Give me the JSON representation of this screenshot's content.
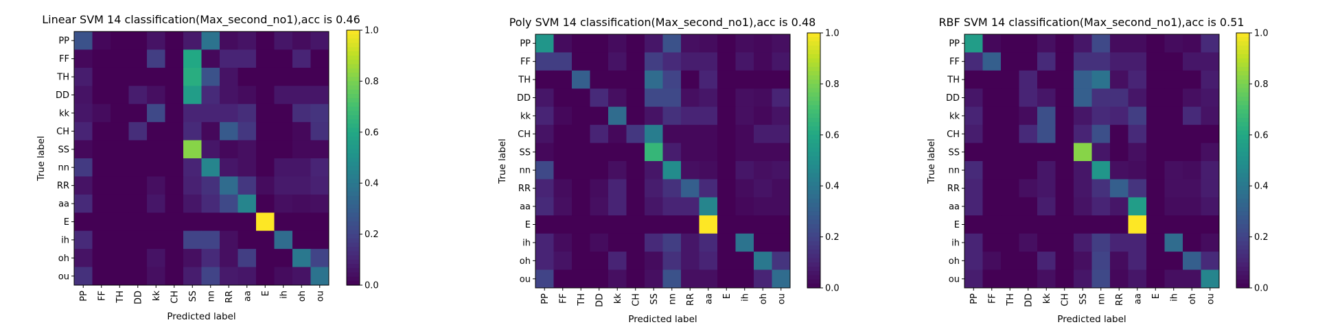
{
  "figure": {},
  "chart_data": [
    {
      "type": "heatmap",
      "title": "Linear SVM 14 classification(Max_second_no1),acc is 0.46",
      "xlabel": "Predicted label",
      "ylabel": "True label",
      "x_categories": [
        "PP",
        "FF",
        "TH",
        "DD",
        "kk",
        "CH",
        "SS",
        "nn",
        "RR",
        "aa",
        "E",
        "ih",
        "oh",
        "ou"
      ],
      "y_categories": [
        "PP",
        "FF",
        "TH",
        "DD",
        "kk",
        "CH",
        "SS",
        "nn",
        "RR",
        "aa",
        "E",
        "ih",
        "oh",
        "ou"
      ],
      "colorbar": {
        "range": [
          0,
          1
        ],
        "ticks": [
          "0.0",
          "0.2",
          "0.4",
          "0.6",
          "0.8",
          "1.0"
        ],
        "colormap": "viridis"
      },
      "values": [
        [
          0.25,
          0.02,
          0.0,
          0.0,
          0.05,
          0.0,
          0.07,
          0.38,
          0.03,
          0.05,
          0.0,
          0.06,
          0.03,
          0.06
        ],
        [
          0.02,
          0.0,
          0.0,
          0.0,
          0.18,
          0.0,
          0.6,
          0.02,
          0.1,
          0.1,
          0.0,
          0.0,
          0.1,
          0.0
        ],
        [
          0.08,
          0.0,
          0.0,
          0.0,
          0.0,
          0.0,
          0.62,
          0.25,
          0.05,
          0.0,
          0.0,
          0.0,
          0.0,
          0.0
        ],
        [
          0.05,
          0.0,
          0.0,
          0.08,
          0.04,
          0.0,
          0.55,
          0.12,
          0.05,
          0.03,
          0.0,
          0.06,
          0.06,
          0.06
        ],
        [
          0.06,
          0.03,
          0.0,
          0.0,
          0.22,
          0.0,
          0.1,
          0.1,
          0.1,
          0.13,
          0.0,
          0.0,
          0.13,
          0.15
        ],
        [
          0.1,
          0.0,
          0.0,
          0.13,
          0.0,
          0.0,
          0.12,
          0.02,
          0.28,
          0.16,
          0.0,
          0.0,
          0.02,
          0.14
        ],
        [
          0.02,
          0.0,
          0.0,
          0.0,
          0.0,
          0.0,
          0.82,
          0.06,
          0.02,
          0.04,
          0.0,
          0.0,
          0.02,
          0.02
        ],
        [
          0.17,
          0.0,
          0.0,
          0.0,
          0.0,
          0.0,
          0.1,
          0.45,
          0.06,
          0.04,
          0.0,
          0.06,
          0.06,
          0.1
        ],
        [
          0.05,
          0.0,
          0.0,
          0.0,
          0.04,
          0.0,
          0.09,
          0.14,
          0.35,
          0.16,
          0.03,
          0.07,
          0.07,
          0.09
        ],
        [
          0.12,
          0.0,
          0.0,
          0.0,
          0.06,
          0.0,
          0.06,
          0.12,
          0.22,
          0.45,
          0.0,
          0.04,
          0.03,
          0.04
        ],
        [
          0.0,
          0.0,
          0.0,
          0.0,
          0.0,
          0.0,
          0.0,
          0.0,
          0.0,
          0.0,
          1.0,
          0.0,
          0.0,
          0.0
        ],
        [
          0.12,
          0.0,
          0.0,
          0.0,
          0.0,
          0.0,
          0.2,
          0.2,
          0.04,
          0.0,
          0.0,
          0.35,
          0.0,
          0.0
        ],
        [
          0.05,
          0.0,
          0.0,
          0.0,
          0.05,
          0.0,
          0.04,
          0.12,
          0.04,
          0.18,
          0.0,
          0.0,
          0.4,
          0.2
        ],
        [
          0.14,
          0.0,
          0.0,
          0.0,
          0.04,
          0.0,
          0.08,
          0.2,
          0.07,
          0.06,
          0.0,
          0.03,
          0.05,
          0.38
        ]
      ]
    },
    {
      "type": "heatmap",
      "title": "Poly SVM 14 classification(Max_second_no1),acc is 0.48",
      "xlabel": "Predicted label",
      "ylabel": "True label",
      "x_categories": [
        "PP",
        "FF",
        "TH",
        "DD",
        "kk",
        "CH",
        "SS",
        "nn",
        "RR",
        "aa",
        "E",
        "ih",
        "oh",
        "ou"
      ],
      "y_categories": [
        "PP",
        "FF",
        "TH",
        "DD",
        "kk",
        "CH",
        "SS",
        "nn",
        "RR",
        "aa",
        "E",
        "ih",
        "oh",
        "ou"
      ],
      "colorbar": {
        "range": [
          0,
          1
        ],
        "ticks": [
          "0.0",
          "0.2",
          "0.4",
          "0.6",
          "0.8",
          "1.0"
        ],
        "colormap": "viridis"
      },
      "values": [
        [
          0.52,
          0.03,
          0.0,
          0.0,
          0.03,
          0.0,
          0.06,
          0.25,
          0.04,
          0.03,
          0.0,
          0.03,
          0.02,
          0.04
        ],
        [
          0.18,
          0.18,
          0.0,
          0.0,
          0.05,
          0.0,
          0.18,
          0.12,
          0.08,
          0.08,
          0.0,
          0.06,
          0.02,
          0.06
        ],
        [
          0.0,
          0.0,
          0.3,
          0.0,
          0.0,
          0.0,
          0.35,
          0.2,
          0.0,
          0.1,
          0.0,
          0.0,
          0.0,
          0.0
        ],
        [
          0.06,
          0.0,
          0.0,
          0.12,
          0.04,
          0.0,
          0.22,
          0.22,
          0.04,
          0.06,
          0.0,
          0.04,
          0.03,
          0.1
        ],
        [
          0.1,
          0.02,
          0.0,
          0.0,
          0.35,
          0.0,
          0.05,
          0.14,
          0.1,
          0.1,
          0.0,
          0.04,
          0.02,
          0.05
        ],
        [
          0.05,
          0.0,
          0.0,
          0.1,
          0.02,
          0.16,
          0.42,
          0.02,
          0.02,
          0.02,
          0.0,
          0.02,
          0.08,
          0.08
        ],
        [
          0.02,
          0.0,
          0.0,
          0.0,
          0.0,
          0.0,
          0.66,
          0.08,
          0.02,
          0.02,
          0.0,
          0.02,
          0.02,
          0.02
        ],
        [
          0.22,
          0.0,
          0.0,
          0.0,
          0.04,
          0.0,
          0.06,
          0.48,
          0.04,
          0.03,
          0.0,
          0.06,
          0.04,
          0.05
        ],
        [
          0.1,
          0.03,
          0.0,
          0.03,
          0.1,
          0.0,
          0.08,
          0.14,
          0.3,
          0.12,
          0.0,
          0.03,
          0.05,
          0.03
        ],
        [
          0.12,
          0.04,
          0.0,
          0.04,
          0.1,
          0.0,
          0.06,
          0.1,
          0.1,
          0.45,
          0.0,
          0.02,
          0.03,
          0.03
        ],
        [
          0.0,
          0.0,
          0.0,
          0.0,
          0.0,
          0.0,
          0.0,
          0.0,
          0.0,
          1.0,
          0.0,
          0.0,
          0.0,
          0.0
        ],
        [
          0.1,
          0.03,
          0.0,
          0.03,
          0.0,
          0.0,
          0.12,
          0.18,
          0.06,
          0.12,
          0.0,
          0.38,
          0.0,
          0.0
        ],
        [
          0.1,
          0.05,
          0.0,
          0.0,
          0.1,
          0.0,
          0.03,
          0.14,
          0.06,
          0.1,
          0.0,
          0.0,
          0.4,
          0.15
        ],
        [
          0.2,
          0.0,
          0.0,
          0.0,
          0.04,
          0.0,
          0.04,
          0.25,
          0.04,
          0.04,
          0.0,
          0.0,
          0.1,
          0.35
        ]
      ]
    },
    {
      "type": "heatmap",
      "title": "RBF SVM 14 classification(Max_second_no1),acc is 0.51",
      "xlabel": "Predicted label",
      "ylabel": "True label",
      "x_categories": [
        "PP",
        "FF",
        "TH",
        "DD",
        "kk",
        "CH",
        "SS",
        "nn",
        "RR",
        "aa",
        "E",
        "ih",
        "oh",
        "ou"
      ],
      "y_categories": [
        "PP",
        "FF",
        "TH",
        "DD",
        "kk",
        "CH",
        "SS",
        "nn",
        "RR",
        "aa",
        "E",
        "ih",
        "oh",
        "ou"
      ],
      "colorbar": {
        "range": [
          0,
          1
        ],
        "ticks": [
          "0.0",
          "0.2",
          "0.4",
          "0.6",
          "0.8",
          "1.0"
        ],
        "colormap": "viridis"
      },
      "values": [
        [
          0.55,
          0.02,
          0.0,
          0.0,
          0.04,
          0.0,
          0.06,
          0.22,
          0.03,
          0.03,
          0.0,
          0.03,
          0.02,
          0.12
        ],
        [
          0.12,
          0.3,
          0.0,
          0.0,
          0.12,
          0.0,
          0.14,
          0.14,
          0.08,
          0.08,
          0.0,
          0.0,
          0.06,
          0.06
        ],
        [
          0.0,
          0.0,
          0.0,
          0.1,
          0.0,
          0.0,
          0.3,
          0.38,
          0.04,
          0.1,
          0.0,
          0.0,
          0.0,
          0.08
        ],
        [
          0.06,
          0.0,
          0.0,
          0.1,
          0.06,
          0.0,
          0.3,
          0.14,
          0.14,
          0.06,
          0.0,
          0.0,
          0.04,
          0.06
        ],
        [
          0.1,
          0.0,
          0.0,
          0.03,
          0.24,
          0.0,
          0.06,
          0.12,
          0.1,
          0.18,
          0.0,
          0.0,
          0.12,
          0.05
        ],
        [
          0.08,
          0.0,
          0.0,
          0.12,
          0.24,
          0.0,
          0.1,
          0.24,
          0.0,
          0.12,
          0.0,
          0.0,
          0.0,
          0.0
        ],
        [
          0.0,
          0.0,
          0.0,
          0.0,
          0.0,
          0.0,
          0.82,
          0.06,
          0.0,
          0.04,
          0.0,
          0.0,
          0.0,
          0.04
        ],
        [
          0.12,
          0.0,
          0.0,
          0.0,
          0.06,
          0.0,
          0.06,
          0.52,
          0.04,
          0.03,
          0.0,
          0.04,
          0.03,
          0.08
        ],
        [
          0.1,
          0.0,
          0.0,
          0.04,
          0.06,
          0.0,
          0.06,
          0.14,
          0.3,
          0.15,
          0.0,
          0.04,
          0.04,
          0.08
        ],
        [
          0.1,
          0.0,
          0.0,
          0.0,
          0.08,
          0.0,
          0.05,
          0.1,
          0.06,
          0.55,
          0.0,
          0.03,
          0.03,
          0.06
        ],
        [
          0.0,
          0.0,
          0.0,
          0.0,
          0.0,
          0.0,
          0.0,
          0.0,
          0.0,
          1.0,
          0.0,
          0.0,
          0.0,
          0.0
        ],
        [
          0.1,
          0.0,
          0.0,
          0.04,
          0.0,
          0.0,
          0.08,
          0.18,
          0.1,
          0.1,
          0.0,
          0.35,
          0.0,
          0.03
        ],
        [
          0.1,
          0.03,
          0.0,
          0.0,
          0.1,
          0.0,
          0.04,
          0.2,
          0.03,
          0.1,
          0.0,
          0.0,
          0.3,
          0.12
        ],
        [
          0.08,
          0.0,
          0.0,
          0.0,
          0.04,
          0.0,
          0.06,
          0.22,
          0.02,
          0.06,
          0.0,
          0.04,
          0.04,
          0.45
        ]
      ]
    }
  ]
}
